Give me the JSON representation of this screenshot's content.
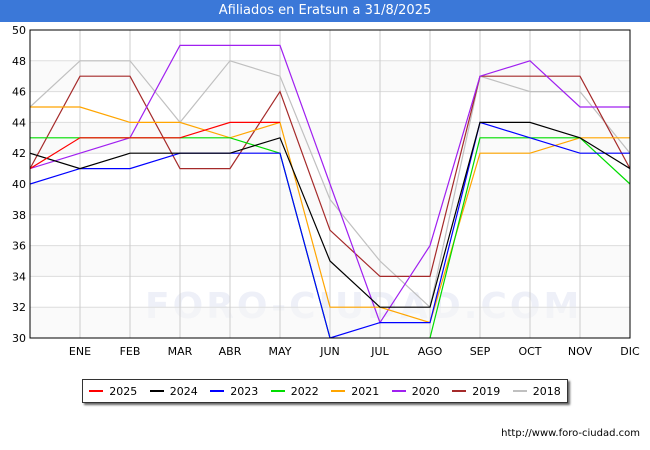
{
  "header": {
    "title": "Afiliados en Eratsun a 31/8/2025"
  },
  "footer": {
    "url": "http://www.foro-ciudad.com",
    "watermark": "FORO-CIUDAD.COM"
  },
  "chart_data": {
    "type": "line",
    "title": "Afiliados en Eratsun a 31/8/2025",
    "categories": [
      "",
      "ENE",
      "FEB",
      "MAR",
      "ABR",
      "MAY",
      "JUN",
      "JUL",
      "AGO",
      "SEP",
      "OCT",
      "NOV",
      "DIC"
    ],
    "ylim": [
      30,
      50
    ],
    "yticks": [
      30,
      32,
      34,
      36,
      38,
      40,
      42,
      44,
      46,
      48,
      50
    ],
    "grid": true,
    "legend": "bottom",
    "series": [
      {
        "name": "2025",
        "color": "#ff0000",
        "values": [
          41,
          43,
          43,
          43,
          44,
          44,
          null,
          null,
          null,
          null,
          null,
          null,
          null
        ]
      },
      {
        "name": "2024",
        "color": "#000000",
        "values": [
          42,
          41,
          42,
          42,
          42,
          43,
          35,
          32,
          32,
          44,
          44,
          43,
          41
        ]
      },
      {
        "name": "2023",
        "color": "#0000ff",
        "values": [
          40,
          41,
          41,
          42,
          42,
          42,
          30,
          31,
          31,
          44,
          43,
          42,
          42
        ]
      },
      {
        "name": "2022",
        "color": "#00dd00",
        "values": [
          43,
          43,
          43,
          43,
          43,
          42,
          30,
          29,
          30,
          43,
          43,
          43,
          40
        ]
      },
      {
        "name": "2021",
        "color": "#ffa500",
        "values": [
          45,
          45,
          44,
          44,
          43,
          44,
          32,
          32,
          31,
          42,
          42,
          43,
          43
        ]
      },
      {
        "name": "2020",
        "color": "#a020f0",
        "values": [
          41,
          42,
          43,
          49,
          49,
          49,
          40,
          31,
          36,
          47,
          48,
          45,
          45
        ]
      },
      {
        "name": "2019",
        "color": "#a52a2a",
        "values": [
          41,
          47,
          47,
          41,
          41,
          46,
          37,
          34,
          34,
          47,
          47,
          47,
          41
        ]
      },
      {
        "name": "2018",
        "color": "#c0c0c0",
        "values": [
          45,
          48,
          48,
          44,
          48,
          47,
          39,
          35,
          32,
          47,
          46,
          46,
          42
        ]
      }
    ]
  }
}
